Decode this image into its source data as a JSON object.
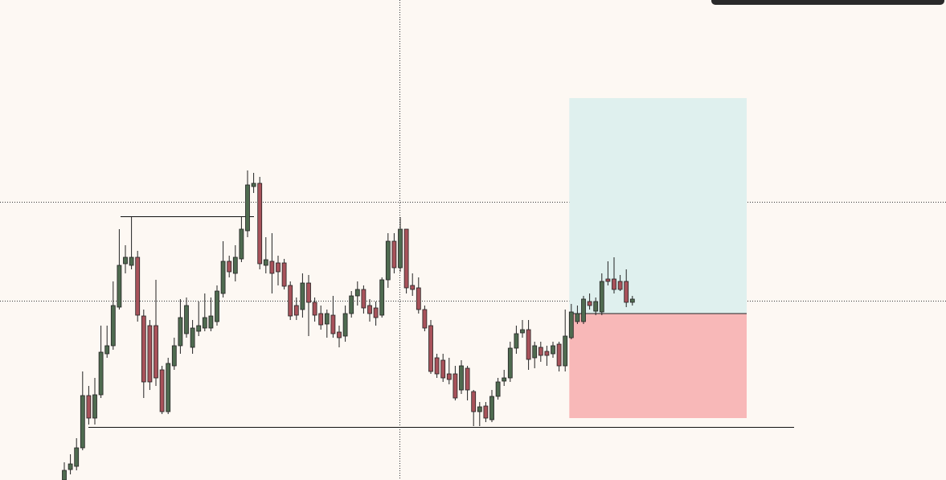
{
  "chart_data": {
    "type": "candlestick",
    "ylim": [
      0,
      600
    ],
    "up_color": "#4f6b50",
    "down_color": "#a8525a",
    "wick_color": "#222222",
    "ohlc": [
      [
        3,
        25,
        3,
        15
      ],
      [
        16,
        35,
        10,
        23
      ],
      [
        20,
        55,
        15,
        43
      ],
      [
        43,
        138,
        40,
        108
      ],
      [
        108,
        120,
        72,
        80
      ],
      [
        80,
        130,
        72,
        109
      ],
      [
        109,
        195,
        105,
        162
      ],
      [
        160,
        195,
        155,
        170
      ],
      [
        170,
        250,
        165,
        220
      ],
      [
        218,
        315,
        215,
        270
      ],
      [
        272,
        295,
        260,
        280
      ],
      [
        270,
        330,
        265,
        280
      ],
      [
        280,
        288,
        200,
        208
      ],
      [
        207,
        215,
        105,
        125
      ],
      [
        195,
        202,
        115,
        125
      ],
      [
        195,
        252,
        120,
        130
      ],
      [
        140,
        145,
        85,
        88
      ],
      [
        88,
        155,
        85,
        148
      ],
      [
        145,
        180,
        140,
        170
      ],
      [
        170,
        228,
        160,
        205
      ],
      [
        185,
        230,
        180,
        220
      ],
      [
        168,
        202,
        160,
        192
      ],
      [
        188,
        225,
        182,
        195
      ],
      [
        192,
        235,
        188,
        205
      ],
      [
        192,
        230,
        188,
        207
      ],
      [
        200,
        245,
        195,
        238
      ],
      [
        235,
        300,
        230,
        275
      ],
      [
        275,
        282,
        255,
        262
      ],
      [
        260,
        295,
        250,
        280
      ],
      [
        278,
        330,
        274,
        315
      ],
      [
        313,
        388,
        305,
        370
      ],
      [
        368,
        385,
        360,
        372
      ],
      [
        372,
        380,
        265,
        272
      ],
      [
        270,
        305,
        260,
        277
      ],
      [
        275,
        310,
        235,
        260
      ],
      [
        273,
        282,
        245,
        262
      ],
      [
        273,
        278,
        240,
        244
      ],
      [
        245,
        250,
        202,
        207
      ],
      [
        220,
        230,
        202,
        208
      ],
      [
        215,
        260,
        205,
        248
      ],
      [
        248,
        258,
        182,
        224
      ],
      [
        224,
        230,
        200,
        208
      ],
      [
        210,
        220,
        190,
        196
      ],
      [
        197,
        215,
        180,
        210
      ],
      [
        208,
        232,
        180,
        185
      ],
      [
        187,
        195,
        168,
        180
      ],
      [
        182,
        220,
        175,
        210
      ],
      [
        210,
        238,
        205,
        232
      ],
      [
        232,
        250,
        220,
        240
      ],
      [
        240,
        245,
        210,
        217
      ],
      [
        220,
        228,
        200,
        210
      ],
      [
        217,
        225,
        195,
        205
      ],
      [
        208,
        255,
        205,
        252
      ],
      [
        252,
        310,
        242,
        300
      ],
      [
        300,
        310,
        260,
        267
      ],
      [
        267,
        330,
        262,
        315
      ],
      [
        315,
        315,
        235,
        242
      ],
      [
        245,
        260,
        232,
        240
      ],
      [
        242,
        255,
        210,
        215
      ],
      [
        215,
        220,
        188,
        192
      ],
      [
        195,
        202,
        135,
        138
      ],
      [
        155,
        160,
        130,
        135
      ],
      [
        152,
        160,
        125,
        130
      ],
      [
        135,
        155,
        122,
        128
      ],
      [
        135,
        145,
        102,
        105
      ],
      [
        115,
        152,
        110,
        145
      ],
      [
        142,
        145,
        102,
        115
      ],
      [
        113,
        115,
        70,
        88
      ],
      [
        88,
        100,
        70,
        94
      ],
      [
        95,
        100,
        75,
        80
      ],
      [
        78,
        115,
        75,
        107
      ],
      [
        107,
        130,
        103,
        125
      ],
      [
        126,
        140,
        120,
        130
      ],
      [
        130,
        175,
        125,
        167
      ],
      [
        167,
        195,
        160,
        185
      ],
      [
        186,
        202,
        180,
        190
      ],
      [
        190,
        202,
        140,
        153
      ],
      [
        155,
        175,
        142,
        170
      ],
      [
        168,
        175,
        150,
        158
      ],
      [
        163,
        170,
        145,
        158
      ],
      [
        160,
        175,
        155,
        170
      ],
      [
        172,
        175,
        138,
        145
      ],
      [
        145,
        215,
        138,
        182
      ],
      [
        180,
        222,
        178,
        212
      ],
      [
        200,
        220,
        197,
        210
      ],
      [
        200,
        232,
        197,
        228
      ],
      [
        225,
        235,
        215,
        220
      ],
      [
        213,
        230,
        208,
        225
      ],
      [
        212,
        260,
        208,
        250
      ],
      [
        253,
        275,
        245,
        250
      ],
      [
        253,
        280,
        235,
        240
      ],
      [
        250,
        258,
        238,
        240
      ],
      [
        250,
        265,
        218,
        224
      ],
      [
        224,
        232,
        220,
        228
      ]
    ],
    "levels": [
      331,
      69
    ],
    "position": {
      "entry": 210,
      "target": 478,
      "stop": 80,
      "target_color": "#dff0ee",
      "stop_color": "#f8b8b8"
    }
  }
}
